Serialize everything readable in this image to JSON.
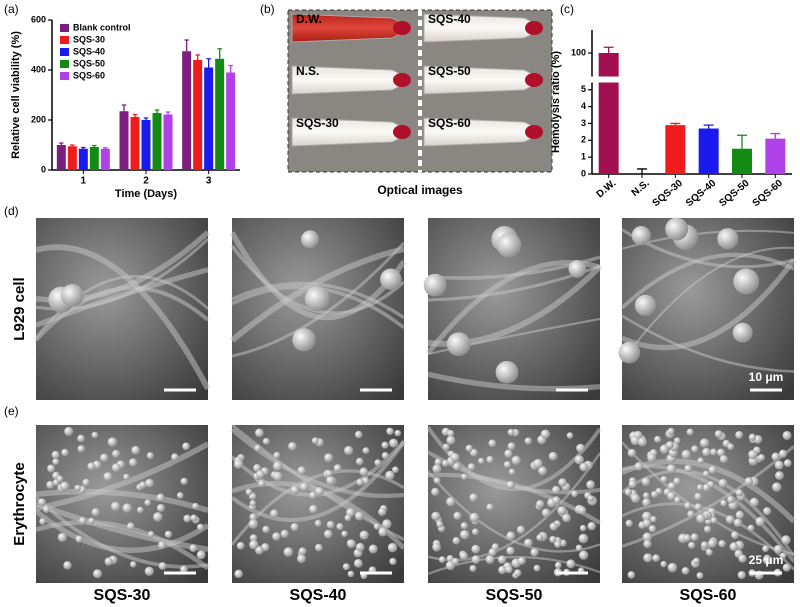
{
  "chart_data": [
    {
      "panel": "(a)",
      "type": "bar",
      "ylabel": "Relative cell viability (%)",
      "xlabel": "Time (Days)",
      "categories": [
        "1",
        "2",
        "3"
      ],
      "series": [
        {
          "name": "Blank control",
          "color": "#7b1f7f",
          "values": [
            100,
            235,
            475
          ],
          "errors": [
            8,
            25,
            45
          ]
        },
        {
          "name": "SQS-30",
          "color": "#ee1c1c",
          "values": [
            95,
            212,
            440
          ],
          "errors": [
            5,
            10,
            20
          ]
        },
        {
          "name": "SQS-40",
          "color": "#1a1aee",
          "values": [
            85,
            200,
            410
          ],
          "errors": [
            5,
            8,
            35
          ]
        },
        {
          "name": "SQS-50",
          "color": "#138a13",
          "values": [
            92,
            228,
            445
          ],
          "errors": [
            6,
            12,
            40
          ]
        },
        {
          "name": "SQS-60",
          "color": "#b040e8",
          "values": [
            85,
            222,
            390
          ],
          "errors": [
            4,
            10,
            28
          ]
        }
      ],
      "ylim": [
        0,
        600
      ],
      "yticks": [
        0,
        200,
        400,
        600
      ],
      "legend": "upper left"
    },
    {
      "panel": "(c)",
      "type": "bar",
      "ylabel": "Hemolysis ratio (%)",
      "categories": [
        "D.W.",
        "N.S.",
        "SQS-30",
        "SQS-40",
        "SQS-50",
        "SQS-60"
      ],
      "values": [
        100,
        0,
        2.9,
        2.7,
        1.5,
        2.1
      ],
      "errors": [
        0.5,
        0.3,
        0.1,
        0.2,
        0.8,
        0.3
      ],
      "colors": [
        "#a3104f",
        "#000000",
        "#ee1c1c",
        "#1a1aee",
        "#138a13",
        "#b040e8"
      ],
      "ylim": [
        0,
        102
      ],
      "ybreak": [
        5.4,
        98
      ],
      "yticks": [
        0,
        1,
        2,
        3,
        4,
        5,
        100
      ]
    }
  ],
  "optical": {
    "panel": "(b)",
    "caption": "Optical images",
    "tubes": [
      "D.W.",
      "SQS-40",
      "N.S.",
      "SQS-50",
      "SQS-30",
      "SQS-60"
    ]
  },
  "sem": {
    "rows": [
      {
        "panel": "(d)",
        "label": "L929 cell",
        "scale_bar": "10 μm"
      },
      {
        "panel": "(e)",
        "label": "Erythrocyte",
        "scale_bar": "25 μm"
      }
    ],
    "columns": [
      "SQS-30",
      "SQS-40",
      "SQS-50",
      "SQS-60"
    ]
  }
}
